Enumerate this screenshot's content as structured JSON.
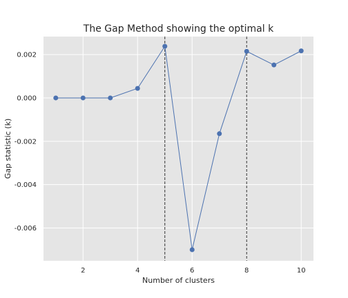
{
  "chart_data": {
    "type": "line",
    "title": "The Gap Method showing the optimal k",
    "xlabel": "Number of clusters",
    "ylabel": "Gap statistic (k)",
    "x": [
      1,
      2,
      3,
      4,
      5,
      6,
      7,
      8,
      9,
      10
    ],
    "series": [
      {
        "values": [
          0.0,
          0.0,
          0.0,
          0.00044,
          0.00238,
          -0.007,
          -0.00165,
          0.00215,
          0.00152,
          0.00217
        ]
      }
    ],
    "xlim": [
      0.55,
      10.45
    ],
    "ylim": [
      -0.00751,
      0.00283
    ],
    "x_ticks": [
      2,
      4,
      6,
      8,
      10
    ],
    "x_tick_labels": [
      "2",
      "4",
      "6",
      "8",
      "10"
    ],
    "y_ticks": [
      0.002,
      0.0,
      -0.002,
      -0.004,
      -0.006
    ],
    "y_tick_labels": [
      "0.002",
      "0.000",
      "-0.002",
      "-0.004",
      "-0.006"
    ],
    "vertical_lines": [
      5,
      8
    ],
    "grid": true,
    "colors": {
      "line": "#4c72b0",
      "background": "#e5e5e5",
      "grid": "#ffffff",
      "vline": "#333333"
    }
  }
}
